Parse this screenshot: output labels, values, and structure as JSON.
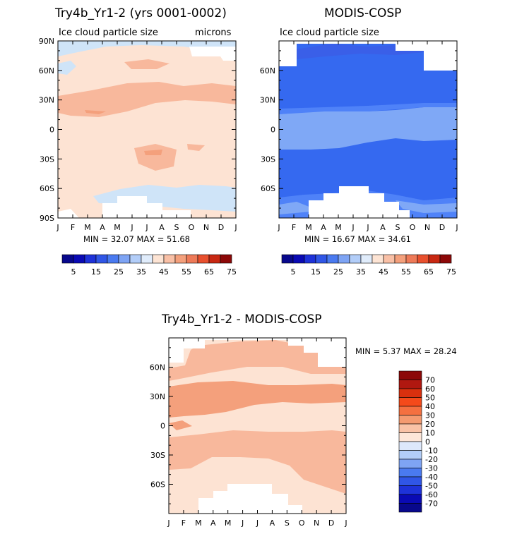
{
  "chart_data": [
    {
      "type": "heatmap",
      "title": "Try4b_Yr1-2 (yrs 0001-0002)",
      "subtitle": "Ice cloud particle size",
      "units": "microns",
      "x_ticks": [
        "J",
        "F",
        "M",
        "A",
        "M",
        "J",
        "J",
        "A",
        "S",
        "O",
        "N",
        "D",
        "J"
      ],
      "y_ticks": [
        "90N",
        "60N",
        "30N",
        "0",
        "30S",
        "60S",
        "90S"
      ],
      "y_range": [
        -90,
        90
      ],
      "stats": "MIN =   32.07 MAX =   51.68",
      "min": 32.07,
      "max": 51.68,
      "colorbar_labels": [
        "5",
        "15",
        "25",
        "35",
        "45",
        "55",
        "65",
        "75"
      ],
      "colorbar_levels": [
        0,
        5,
        10,
        15,
        20,
        25,
        30,
        35,
        40,
        45,
        50,
        55,
        60,
        65,
        70,
        75
      ]
    },
    {
      "type": "heatmap",
      "title": "MODIS-COSP",
      "subtitle": "Ice cloud particle size",
      "x_ticks": [
        "J",
        "F",
        "M",
        "A",
        "M",
        "J",
        "J",
        "A",
        "S",
        "O",
        "N",
        "D",
        "J"
      ],
      "y_ticks": [
        "60N",
        "30N",
        "0",
        "30S",
        "60S"
      ],
      "y_range": [
        -90,
        90
      ],
      "stats": "MIN =   16.67 MAX =   34.61",
      "min": 16.67,
      "max": 34.61,
      "colorbar_labels": [
        "5",
        "15",
        "25",
        "35",
        "45",
        "55",
        "65",
        "75"
      ],
      "colorbar_levels": [
        0,
        5,
        10,
        15,
        20,
        25,
        30,
        35,
        40,
        45,
        50,
        55,
        60,
        65,
        70,
        75
      ]
    },
    {
      "type": "heatmap",
      "title": "Try4b_Yr1-2 - MODIS-COSP",
      "x_ticks": [
        "J",
        "F",
        "M",
        "A",
        "M",
        "J",
        "J",
        "A",
        "S",
        "O",
        "N",
        "D",
        "J"
      ],
      "y_ticks": [
        "60N",
        "30N",
        "0",
        "30S",
        "60S"
      ],
      "y_range": [
        -90,
        90
      ],
      "stats": "MIN =    5.37 MAX =   28.24",
      "min": 5.37,
      "max": 28.24,
      "colorbar_labels": [
        "70",
        "60",
        "50",
        "40",
        "30",
        "20",
        "10",
        "0",
        "-10",
        "-20",
        "-30",
        "-40",
        "-50",
        "-60",
        "-70"
      ]
    }
  ],
  "colors": {
    "c1": "#fde3d3",
    "c2": "#f8b89c",
    "c3": "#f4a07c",
    "c4": "#ee8062",
    "b1": "#cfe4f8",
    "b2": "#7fa8f6",
    "b3": "#4f82f8",
    "b4": "#3569f0",
    "cb_pos": [
      "#08088c",
      "#0a0ab4",
      "#1e32d8",
      "#3056e6",
      "#4a7af0",
      "#7ea4f4",
      "#b2cdf8",
      "#e0ecfb",
      "#fde4d4",
      "#f9c0a6",
      "#f4a07c",
      "#ee7a58",
      "#e8502e",
      "#c82812",
      "#8c0808"
    ],
    "cb_diff": [
      "#8c0808",
      "#b01810",
      "#d8300e",
      "#f44a1a",
      "#f47040",
      "#f49a70",
      "#f9c2a6",
      "#fde6d8",
      "#dde8fb",
      "#b2cdf8",
      "#7ea4f4",
      "#4a7af0",
      "#3056e6",
      "#1e32d8",
      "#0a0ab4",
      "#08088c"
    ]
  }
}
